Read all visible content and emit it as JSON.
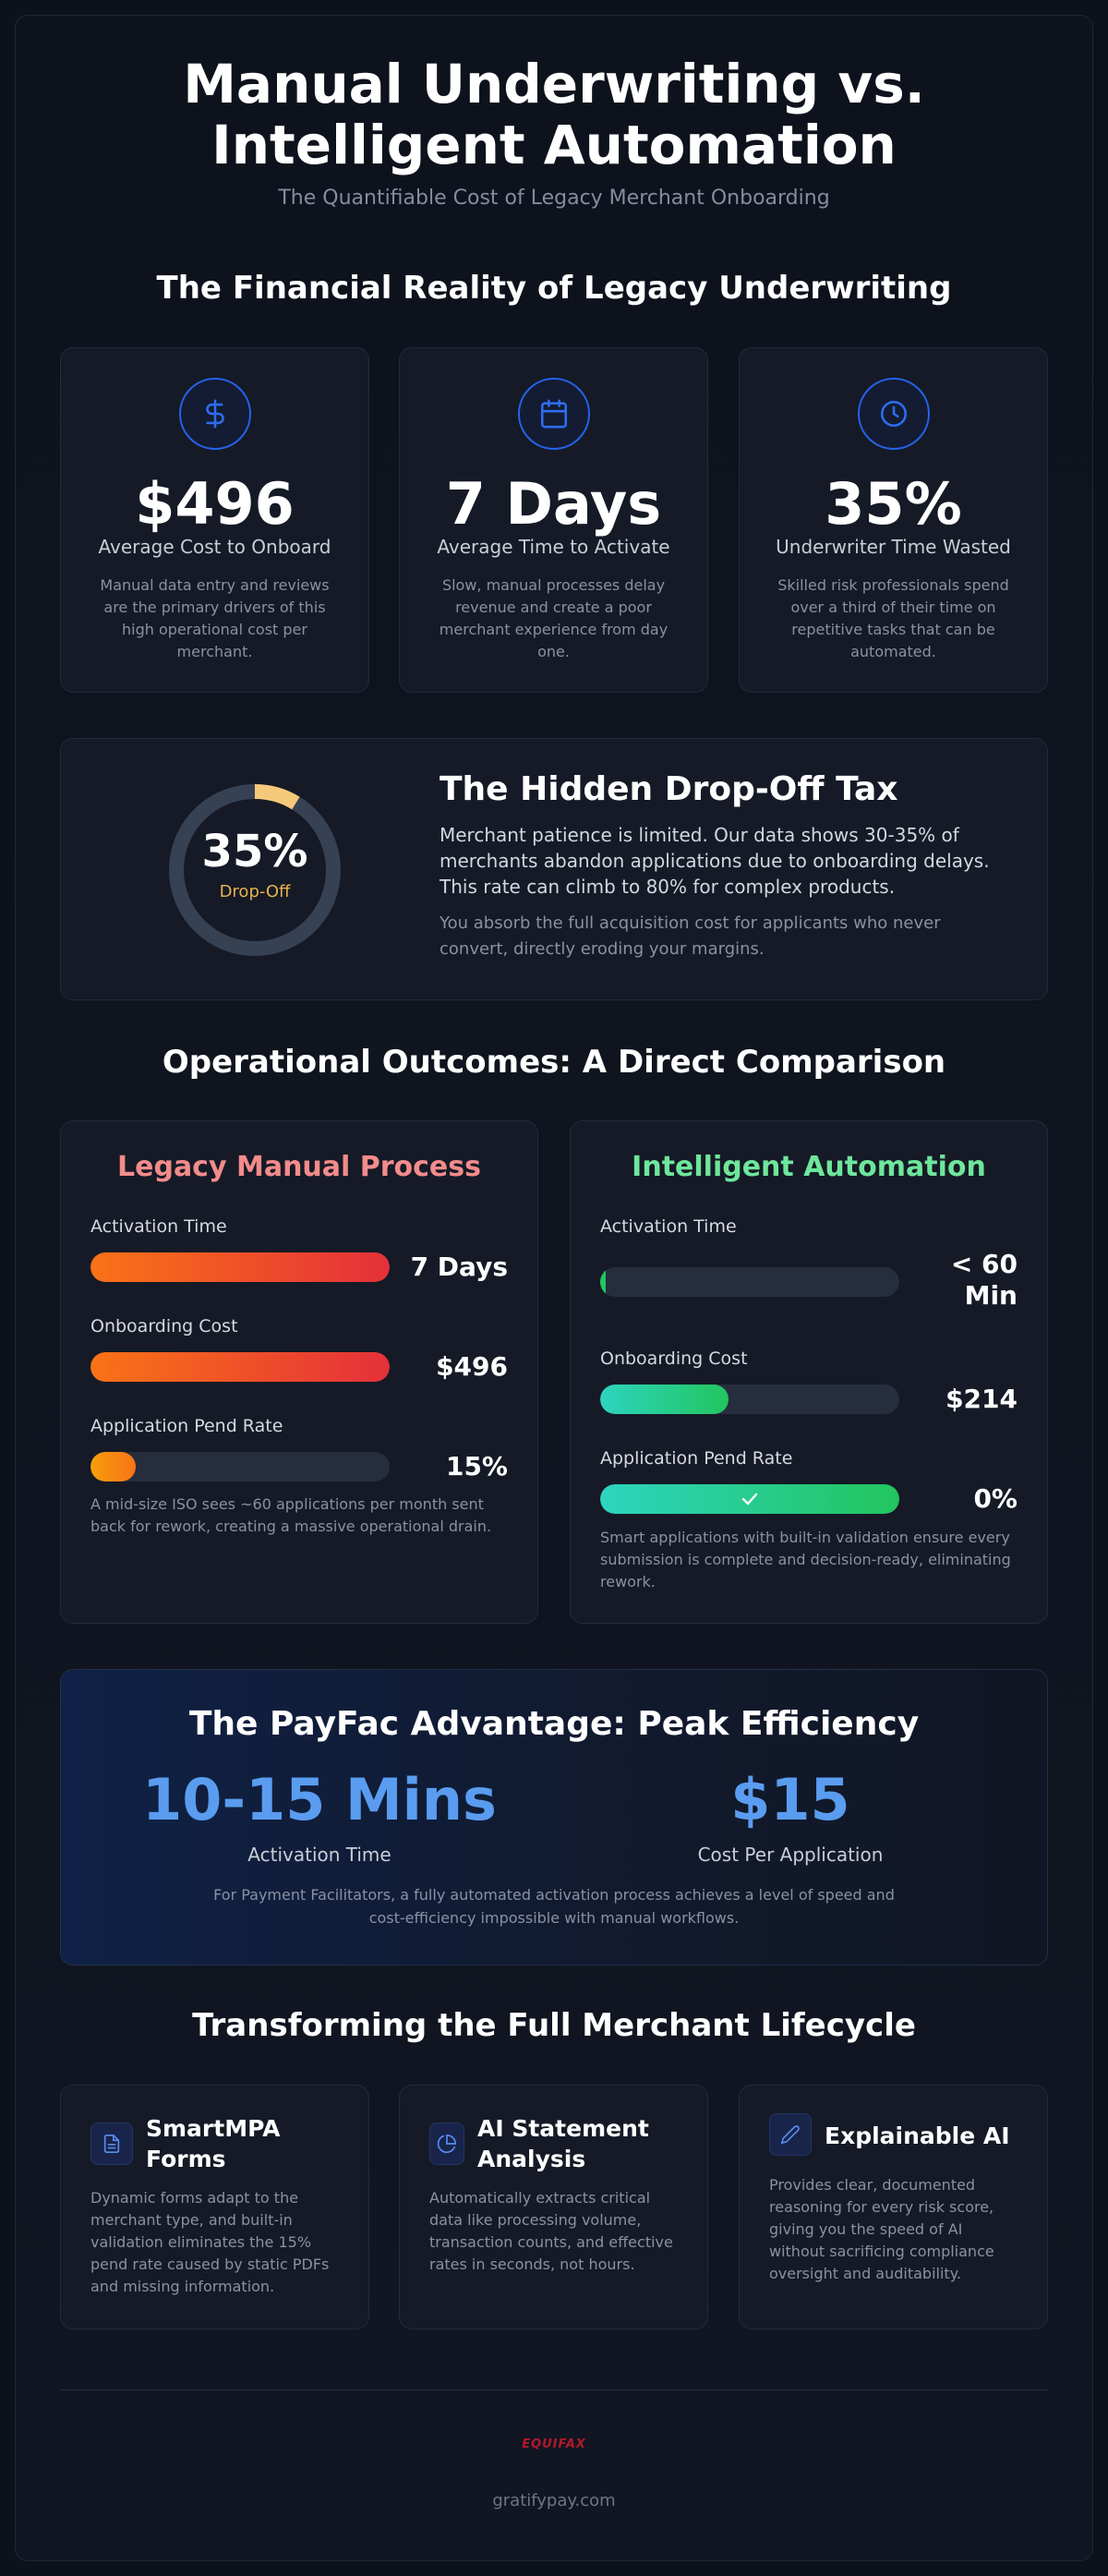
{
  "header": {
    "title_line1": "Manual Underwriting vs.",
    "title_line2": "Intelligent Automation",
    "subtitle": "The Quantifiable Cost of Legacy Merchant Onboarding"
  },
  "financial": {
    "title": "The Financial Reality of Legacy Underwriting",
    "cards": [
      {
        "icon": "dollar-icon",
        "value": "$496",
        "label": "Average Cost to Onboard",
        "desc": "Manual data entry and reviews are the primary drivers of this high operational cost per merchant."
      },
      {
        "icon": "calendar-icon",
        "value": "7 Days",
        "label": "Average Time to Activate",
        "desc": "Slow, manual processes delay revenue and create a poor merchant experience from day one."
      },
      {
        "icon": "clock-icon",
        "value": "35%",
        "label": "Underwriter Time Wasted",
        "desc": "Skilled risk professionals spend over a third of their time on repetitive tasks that can be automated."
      }
    ]
  },
  "dropoff": {
    "percent_text": "35%",
    "percent_value": 0.35,
    "ring_label": "Drop-Off",
    "title": "The Hidden Drop-Off Tax",
    "body": "Merchant patience is limited. Our data shows 30-35% of merchants abandon applications due to onboarding delays. This rate can climb to 80% for complex products.",
    "note": "You absorb the full acquisition cost for applicants who never convert, directly eroding your margins.",
    "colors": {
      "accent": "#f6c97a",
      "track": "#374154"
    }
  },
  "comparison": {
    "title": "Operational Outcomes: A Direct Comparison",
    "legacy": {
      "title": "Legacy Manual Process",
      "title_color": "#f38b8b",
      "metrics": [
        {
          "label": "Activation Time",
          "value": "7 Days",
          "fill": 1.0
        },
        {
          "label": "Onboarding Cost",
          "value": "$496",
          "fill": 1.0
        },
        {
          "label": "Application Pend Rate",
          "value": "15%",
          "fill": 0.15
        }
      ],
      "note": "A mid-size ISO sees ~60 applications per month sent back for rework, creating a massive operational drain."
    },
    "automation": {
      "title": "Intelligent Automation",
      "title_color": "#6ee69b",
      "metrics": [
        {
          "label": "Activation Time",
          "value_line1": "< 60",
          "value_line2": "Min",
          "fill": 0.02
        },
        {
          "label": "Onboarding Cost",
          "value": "$214",
          "fill": 0.43
        },
        {
          "label": "Application Pend Rate",
          "value": "0%",
          "fill": 1.0,
          "icon": "check-icon"
        }
      ],
      "note": "Smart applications with built-in validation ensure every submission is complete and decision-ready, eliminating rework."
    }
  },
  "payfac": {
    "title": "The PayFac Advantage: Peak Efficiency",
    "stats": [
      {
        "value": "10-15 Mins",
        "label": "Activation Time"
      },
      {
        "value": "$15",
        "label": "Cost Per Application"
      }
    ],
    "note": "For Payment Facilitators, a fully automated activation process achieves a level of speed and cost-efficiency impossible with manual workflows."
  },
  "lifecycle": {
    "title": "Transforming the Full Merchant Lifecycle",
    "cards": [
      {
        "icon": "document-icon",
        "title": "SmartMPA Forms",
        "desc": "Dynamic forms adapt to the merchant type, and built-in validation eliminates the 15% pend rate caused by static PDFs and missing information."
      },
      {
        "icon": "pie-chart-icon",
        "title": "AI Statement Analysis",
        "desc": "Automatically extracts critical data like processing volume, transaction counts, and effective rates in seconds, not hours."
      },
      {
        "icon": "pencil-icon",
        "title": "Explainable AI",
        "desc": "Provides clear, documented reasoning for every risk score, giving you the speed of AI without sacrificing compliance oversight and auditability."
      }
    ]
  },
  "footer": {
    "logo_text": "EQUIFAX",
    "site": "gratifypay.com"
  }
}
